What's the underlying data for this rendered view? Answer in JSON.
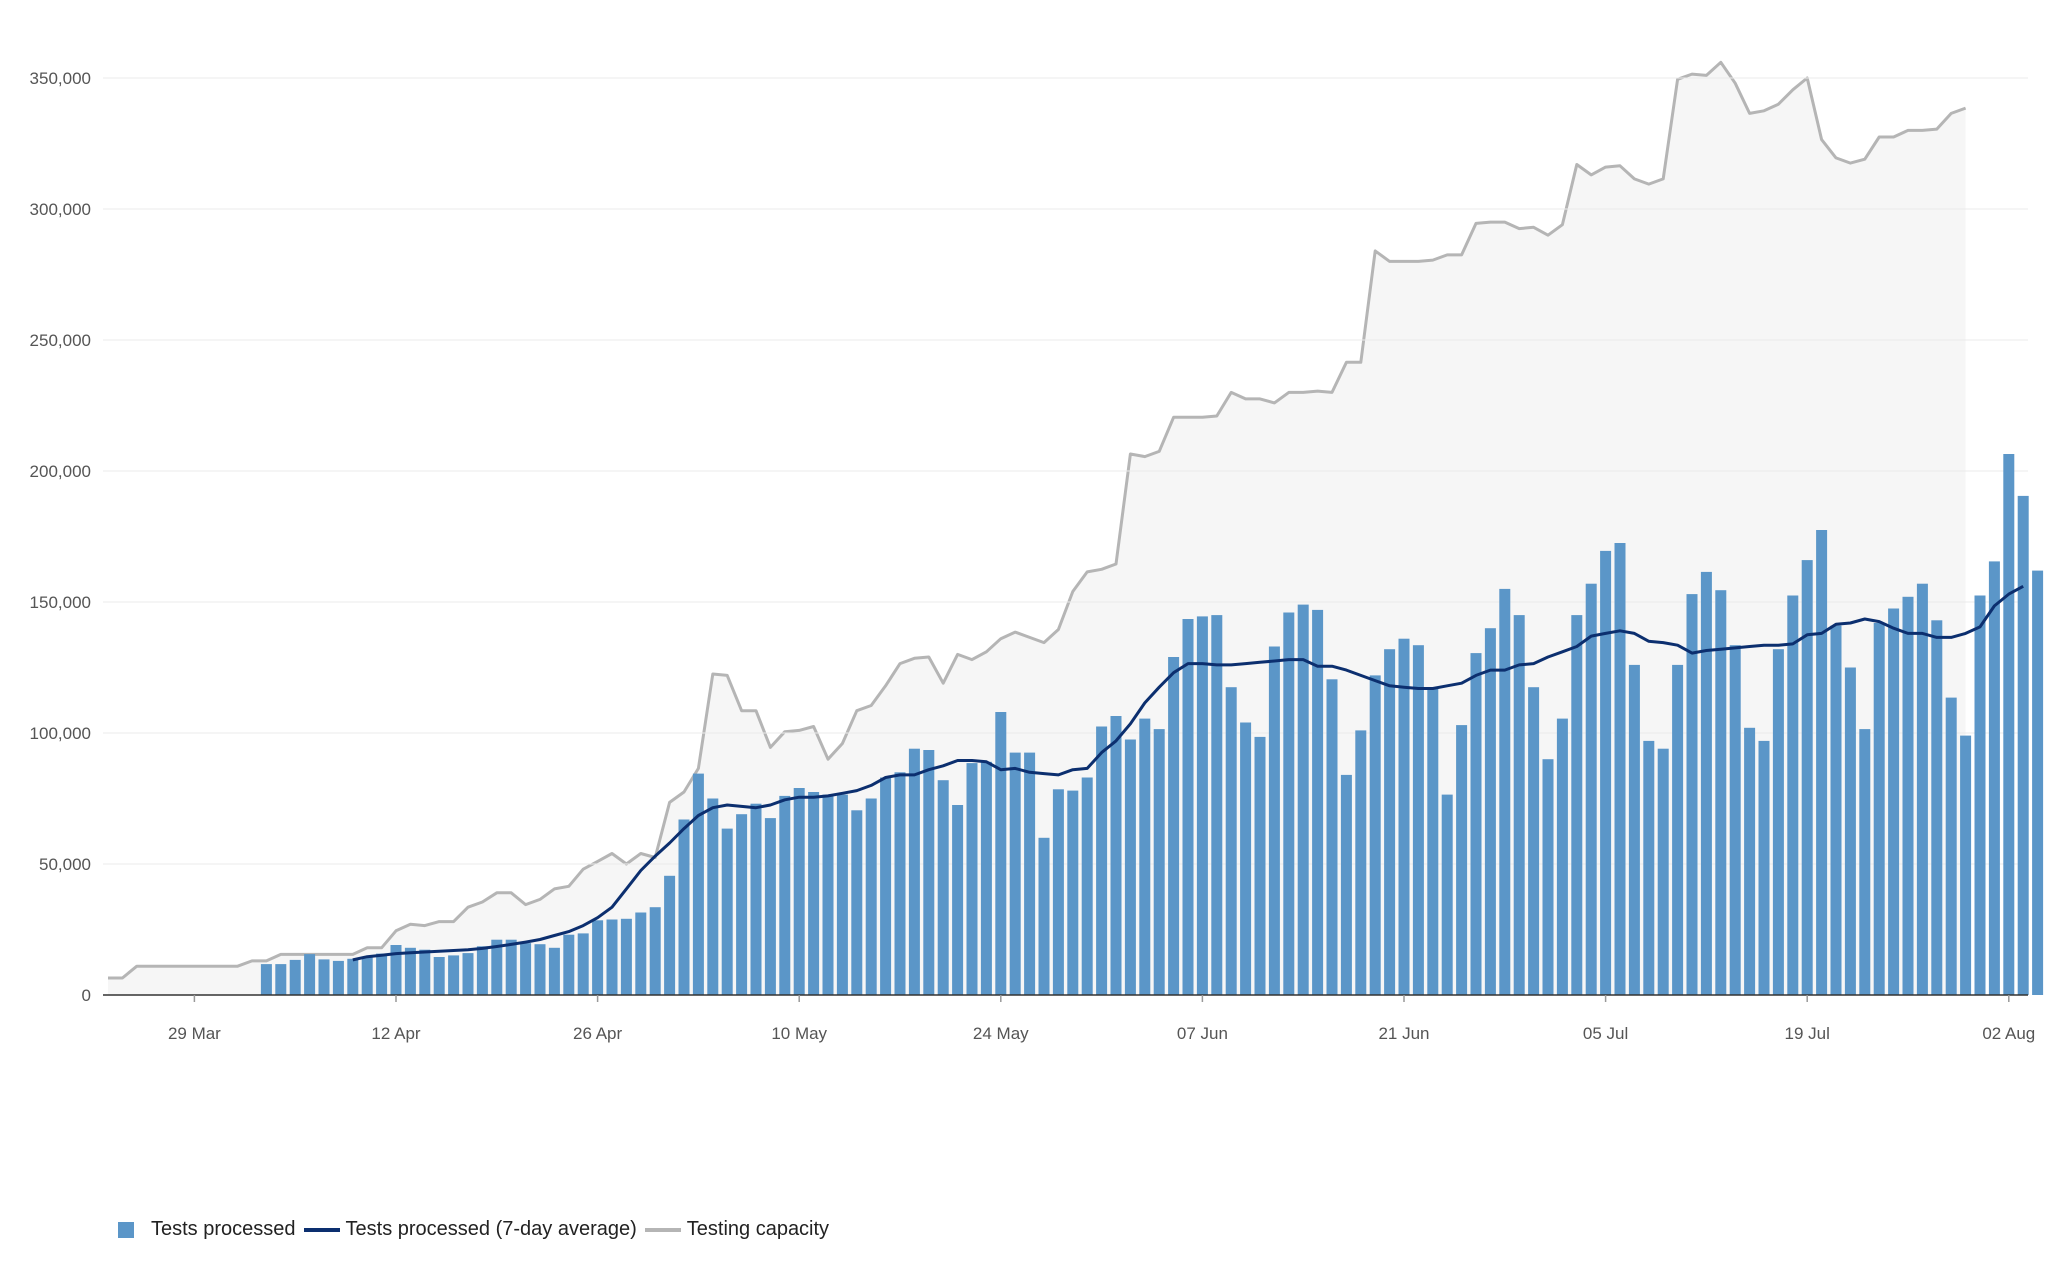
{
  "chart_data": {
    "type": "bar",
    "title": "",
    "xlabel": "",
    "ylabel": "",
    "ylim": [
      0,
      350000
    ],
    "yticks": [
      0,
      50000,
      100000,
      150000,
      200000,
      250000,
      300000,
      350000
    ],
    "ytick_labels": [
      "0",
      "50,000",
      "100,000",
      "150,000",
      "200,000",
      "250,000",
      "300,000",
      "350,000"
    ],
    "x_start": "2020-03-23",
    "x_ticks": [
      {
        "day": 6,
        "label": "29 Mar"
      },
      {
        "day": 20,
        "label": "12 Apr"
      },
      {
        "day": 34,
        "label": "26 Apr"
      },
      {
        "day": 48,
        "label": "10 May"
      },
      {
        "day": 62,
        "label": "24 May"
      },
      {
        "day": 76,
        "label": "07 Jun"
      },
      {
        "day": 90,
        "label": "21 Jun"
      },
      {
        "day": 104,
        "label": "05 Jul"
      },
      {
        "day": 118,
        "label": "19 Jul"
      },
      {
        "day": 132,
        "label": "02 Aug"
      }
    ],
    "colors": {
      "bars": "#5b96c8",
      "average": "#0c2f6f",
      "capacity": "#b5b5b5",
      "capacity_fill": "#f6f6f6",
      "grid": "#ebebeb",
      "axis": "#333333"
    },
    "series": [
      {
        "name": "Tests processed",
        "type": "bar",
        "start_day": 11,
        "values": [
          11800,
          11800,
          13400,
          15600,
          13600,
          13000,
          13800,
          14600,
          15800,
          19100,
          18000,
          17300,
          14500,
          15100,
          16000,
          18600,
          21100,
          21100,
          19800,
          19400,
          18000,
          23000,
          23500,
          28500,
          28800,
          29100,
          31500,
          33500,
          45500,
          67000,
          84500,
          75000,
          63500,
          69000,
          73000,
          67500,
          76000,
          79000,
          77500,
          76500,
          76500,
          70500,
          75000,
          83000,
          85000,
          94000,
          93500,
          82000,
          72500,
          88500,
          89000,
          108000,
          92500,
          92500,
          60000,
          78500,
          78000,
          83000,
          102500,
          106500,
          97500,
          105500,
          101500,
          129000,
          143500,
          144500,
          145000,
          117500,
          104000,
          98500,
          133000,
          146000,
          149000,
          147000,
          120500,
          84000,
          101000,
          122000,
          132000,
          136000,
          133500,
          117500,
          76500,
          103000,
          130500,
          140000,
          155000,
          145000,
          117500,
          90000,
          105500,
          145000,
          157000,
          169500,
          172500,
          126000,
          97000,
          94000,
          126000,
          153000,
          161500,
          154500,
          133500,
          102000,
          97000,
          132000,
          152500,
          166000,
          177500,
          141000,
          125000,
          101500,
          142000,
          147500,
          152000,
          157000,
          143000,
          113500,
          99000,
          152500,
          165500,
          206500,
          190500,
          162000
        ]
      },
      {
        "name": "Tests processed (7-day average)",
        "type": "line",
        "start_day": 17,
        "values": [
          13400,
          14600,
          15200,
          15800,
          16100,
          16400,
          16700,
          17000,
          17300,
          17800,
          18500,
          19300,
          20200,
          21200,
          22700,
          24200,
          26500,
          29500,
          33500,
          40500,
          47500,
          53000,
          58000,
          63500,
          68500,
          71500,
          72500,
          72000,
          71500,
          72500,
          74500,
          75500,
          75500,
          76000,
          77000,
          78000,
          80000,
          83000,
          84000,
          84000,
          86000,
          87500,
          89500,
          89500,
          89000,
          86000,
          86500,
          85000,
          84500,
          84000,
          86000,
          86500,
          92500,
          97000,
          103500,
          111500,
          117500,
          123000,
          126500,
          126500,
          126000,
          126000,
          126500,
          127000,
          127500,
          128000,
          128000,
          125500,
          125500,
          124000,
          122000,
          120000,
          118000,
          117500,
          117000,
          117000,
          118000,
          119000,
          122000,
          124000,
          124000,
          126000,
          126500,
          129000,
          131000,
          133000,
          137000,
          138000,
          139000,
          138000,
          135000,
          134500,
          133500,
          130500,
          131500,
          132000,
          132500,
          133000,
          133500,
          133500,
          134000,
          137500,
          138000,
          141500,
          142000,
          143500,
          142500,
          140000,
          138000,
          138000,
          136500,
          136500,
          138000,
          140500,
          148500,
          153000,
          156000
        ]
      },
      {
        "name": "Testing capacity",
        "type": "area",
        "start_day": 0,
        "values": [
          6500,
          6500,
          11000,
          11000,
          11000,
          11000,
          11000,
          11000,
          11000,
          11000,
          13000,
          13000,
          15500,
          15500,
          15500,
          15500,
          15500,
          15500,
          18000,
          18000,
          24500,
          27000,
          26500,
          28000,
          28000,
          33500,
          35500,
          39000,
          39000,
          34500,
          36500,
          40500,
          41500,
          48000,
          51000,
          54000,
          50000,
          54000,
          52500,
          73500,
          77500,
          86500,
          122500,
          122000,
          108500,
          108500,
          94500,
          100500,
          101000,
          102500,
          90000,
          96000,
          108500,
          110500,
          118000,
          126500,
          128500,
          129000,
          119000,
          130000,
          128000,
          131000,
          136000,
          138500,
          136500,
          134500,
          139500,
          154000,
          161500,
          162500,
          164500,
          206500,
          205500,
          207500,
          220500,
          220500,
          220500,
          221000,
          230000,
          227500,
          227500,
          226000,
          230000,
          230000,
          230500,
          230000,
          241500,
          241500,
          284000,
          280000,
          280000,
          280000,
          280500,
          282500,
          282500,
          294500,
          295000,
          295000,
          292500,
          293000,
          290000,
          294000,
          317000,
          313000,
          316000,
          316500,
          311500,
          309500,
          311500,
          349500,
          351500,
          351000,
          356000,
          348000,
          336500,
          337500,
          340000,
          345500,
          350000,
          326500,
          319500,
          317500,
          319000,
          327500,
          327500,
          330000,
          330000,
          330500,
          336500,
          338500
        ]
      }
    ]
  },
  "legend": {
    "bars_label": "Tests processed",
    "average_label": "Tests processed (7-day average)",
    "capacity_label": "Testing capacity"
  }
}
